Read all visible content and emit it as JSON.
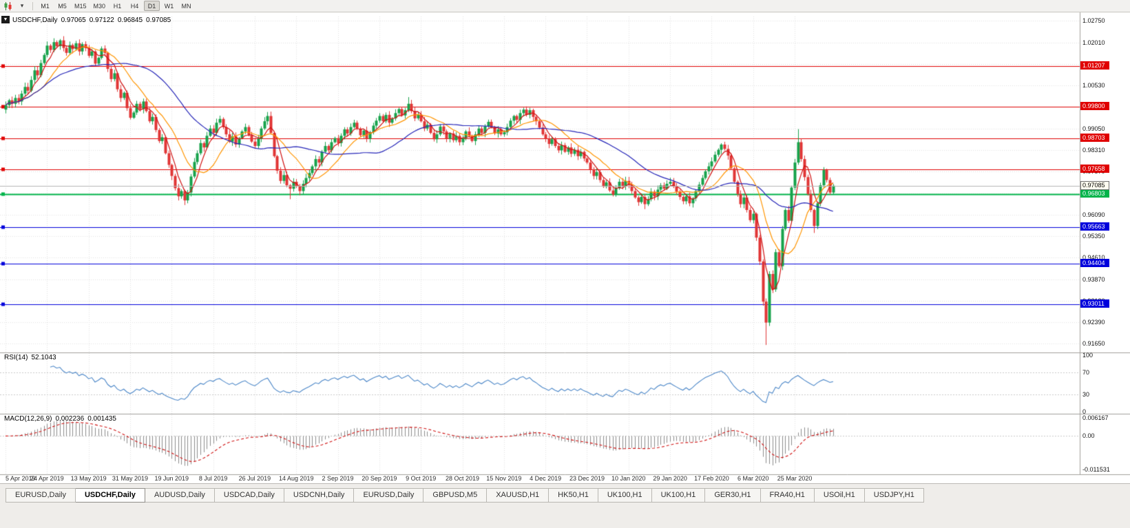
{
  "icons": {
    "dropdown_arrow": "▾",
    "one_click": "▼"
  },
  "toolbar": {
    "timeframes": [
      "M1",
      "M5",
      "M15",
      "M30",
      "H1",
      "H4",
      "D1",
      "W1",
      "MN"
    ],
    "active": "D1"
  },
  "chart_title": {
    "symbol": "USDCHF,Daily",
    "open": "0.97065",
    "high": "0.97122",
    "low": "0.96845",
    "close": "0.97085"
  },
  "chart_data": {
    "type": "candlestick",
    "symbol": "USDCHF",
    "timeframe": "Daily",
    "bars_per_tick": 13,
    "date_ticks": [
      "5 Apr 2019",
      "24 Apr 2019",
      "13 May 2019",
      "31 May 2019",
      "19 Jun 2019",
      "8 Jul 2019",
      "26 Jul 2019",
      "14 Aug 2019",
      "2 Sep 2019",
      "20 Sep 2019",
      "9 Oct 2019",
      "28 Oct 2019",
      "15 Nov 2019",
      "4 Dec 2019",
      "23 Dec 2019",
      "10 Jan 2020",
      "29 Jan 2020",
      "17 Feb 2020",
      "6 Mar 2020",
      "25 Mar 2020"
    ],
    "first_open": 0.997,
    "closes": [
      0.9985,
      1.0002,
      0.999,
      1.001,
      0.9998,
      1.0025,
      1.0048,
      1.0035,
      1.0072,
      1.0105,
      1.0088,
      1.013,
      1.0158,
      1.019,
      1.0175,
      1.0202,
      1.0188,
      1.0208,
      1.0182,
      1.0165,
      1.0192,
      1.0178,
      1.0198,
      1.017,
      1.0195,
      1.0182,
      1.0155,
      1.017,
      1.0128,
      1.0148,
      1.018,
      1.0165,
      1.011,
      1.0075,
      1.0095,
      1.004,
      1.001,
      1.0028,
      0.9975,
      0.9942,
      0.996,
      0.999,
      0.9972,
      0.9998,
      0.9965,
      0.993,
      0.9945,
      0.99,
      0.9862,
      0.9875,
      0.982,
      0.978,
      0.9742,
      0.97,
      0.9672,
      0.969,
      0.9658,
      0.9685,
      0.974,
      0.979,
      0.982,
      0.9855,
      0.984,
      0.988,
      0.9905,
      0.989,
      0.9925,
      0.9938,
      0.991,
      0.9885,
      0.986,
      0.9878,
      0.985,
      0.9872,
      0.9895,
      0.991,
      0.9882,
      0.986,
      0.9845,
      0.987,
      0.9905,
      0.993,
      0.9948,
      0.989,
      0.981,
      0.976,
      0.9725,
      0.9745,
      0.971,
      0.9698,
      0.9722,
      0.9708,
      0.969,
      0.9715,
      0.9735,
      0.9752,
      0.9775,
      0.98,
      0.9788,
      0.9825,
      0.9845,
      0.983,
      0.9858,
      0.9872,
      0.9855,
      0.988,
      0.9902,
      0.9888,
      0.991,
      0.9925,
      0.9905,
      0.9882,
      0.9898,
      0.987,
      0.9892,
      0.9915,
      0.9932,
      0.9948,
      0.993,
      0.9952,
      0.9925,
      0.994,
      0.9958,
      0.9972,
      0.995,
      0.9968,
      0.999,
      0.9965,
      0.994,
      0.9952,
      0.993,
      0.9905,
      0.9918,
      0.989,
      0.9868,
      0.9885,
      0.9912,
      0.9895,
      0.987,
      0.9888,
      0.9865,
      0.988,
      0.9858,
      0.9872,
      0.9895,
      0.988,
      0.9862,
      0.9885,
      0.9905,
      0.989,
      0.9912,
      0.9928,
      0.991,
      0.9888,
      0.9902,
      0.9885,
      0.9892,
      0.991,
      0.9932,
      0.9948,
      0.9935,
      0.9958,
      0.997,
      0.9952,
      0.9968,
      0.9945,
      0.993,
      0.9908,
      0.9885,
      0.987,
      0.9852,
      0.9868,
      0.9845,
      0.983,
      0.9848,
      0.9825,
      0.984,
      0.9818,
      0.9832,
      0.981,
      0.9825,
      0.9802,
      0.9788,
      0.9765,
      0.9742,
      0.9755,
      0.9728,
      0.9705,
      0.972,
      0.9692,
      0.9678,
      0.97,
      0.9722,
      0.9708,
      0.9725,
      0.9712,
      0.969,
      0.9668,
      0.9652,
      0.967,
      0.9645,
      0.9662,
      0.9688,
      0.9672,
      0.9695,
      0.971,
      0.9698,
      0.9715,
      0.9722,
      0.9705,
      0.9688,
      0.967,
      0.9655,
      0.9672,
      0.9648,
      0.9665,
      0.969,
      0.9712,
      0.9735,
      0.9758,
      0.9775,
      0.9792,
      0.9815,
      0.9832,
      0.985,
      0.9835,
      0.9812,
      0.9768,
      0.9722,
      0.968,
      0.9645,
      0.9668,
      0.9625,
      0.959,
      0.9612,
      0.953,
      0.9448,
      0.931,
      0.9238,
      0.9405,
      0.9352,
      0.948,
      0.9432,
      0.956,
      0.9625,
      0.9588,
      0.9702,
      0.9788,
      0.9858,
      0.98,
      0.9738,
      0.968,
      0.9625,
      0.957,
      0.9648,
      0.971,
      0.9762,
      0.9728,
      0.9685,
      0.97085
    ],
    "wick_overrides": {
      "56": {
        "low": 0.9642
      },
      "89": {
        "low": 0.9662
      },
      "126": {
        "high": 1.0013
      },
      "200": {
        "low": 0.9628
      },
      "238": {
        "low": 0.9161
      },
      "248": {
        "high": 0.9903
      },
      "253": {
        "low": 0.9546
      }
    },
    "price_axis": {
      "labels": [
        "1.02750",
        "1.02010",
        "1.01270",
        "1.00530",
        "0.99790",
        "0.99050",
        "0.98310",
        "0.97570",
        "0.96830",
        "0.96090",
        "0.95350",
        "0.94610",
        "0.93870",
        "0.93130",
        "0.92390",
        "0.91650"
      ],
      "min": 0.914,
      "max": 1.029
    },
    "current_price": {
      "value": 0.97085,
      "label": "0.97085"
    },
    "levels": [
      {
        "price": 1.01207,
        "label": "1.01207",
        "color": "#e00000",
        "width": 1.2
      },
      {
        "price": 0.998,
        "label": "0.99800",
        "color": "#e00000",
        "width": 1.2
      },
      {
        "price": 0.98703,
        "label": "0.98703",
        "color": "#e00000",
        "width": 1.2
      },
      {
        "price": 0.97658,
        "label": "0.97658",
        "color": "#e00000",
        "width": 1.2
      },
      {
        "price": 0.96803,
        "label": "0.96803",
        "color": "#00b44a",
        "width": 2
      },
      {
        "price": 0.95663,
        "label": "0.95663",
        "color": "#0000dc",
        "width": 1.2
      },
      {
        "price": 0.94404,
        "label": "0.94404",
        "color": "#0000dc",
        "width": 1.2
      },
      {
        "price": 0.93011,
        "label": "0.93011",
        "color": "#0000dc",
        "width": 1.2
      }
    ],
    "moving_averages": [
      {
        "period": 5,
        "color": "#d01010"
      },
      {
        "period": 13,
        "color": "#ff9500"
      },
      {
        "period": 34,
        "color": "#2525b8"
      }
    ],
    "colors": {
      "up": "#17a24b",
      "down": "#e13535",
      "grid": "#e2e2e2",
      "background": "#ffffff",
      "price_line": "#b4b4b4"
    },
    "rsi": {
      "label": "RSI(14)",
      "value": "52.1043",
      "period": 14,
      "color": "#4a86c8",
      "axis_labels": [
        "100",
        "70",
        "30",
        "0"
      ],
      "levels": [
        70,
        30
      ]
    },
    "macd": {
      "label": "MACD(12,26,9)",
      "values": [
        "0.002236",
        "0.001435"
      ],
      "fast": 12,
      "slow": 26,
      "signal": 9,
      "histogram_color": "#8c8c8c",
      "signal_color": "#d01010",
      "axis_labels": [
        {
          "value": 0.006167,
          "text": "0.006167"
        },
        {
          "value": 0,
          "text": "0.00"
        },
        {
          "value": -0.011531,
          "text": "-0.011531"
        }
      ]
    }
  },
  "tabs": {
    "items": [
      "EURUSD,Daily",
      "USDCHF,Daily",
      "AUDUSD,Daily",
      "USDCAD,Daily",
      "USDCNH,Daily",
      "EURUSD,Daily",
      "GBPUSD,M5",
      "XAUUSD,H1",
      "HK50,H1",
      "UK100,H1",
      "UK100,H1",
      "GER30,H1",
      "FRA40,H1",
      "USOil,H1",
      "USDJPY,H1"
    ],
    "active_index": 1
  }
}
